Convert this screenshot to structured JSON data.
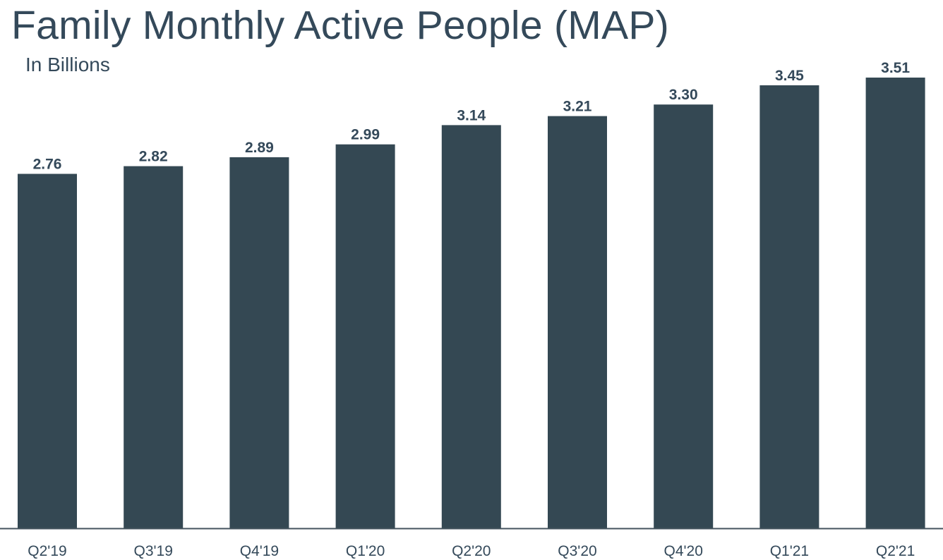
{
  "header": {
    "title": "Family Monthly Active People (MAP)",
    "subtitle": "In Billions"
  },
  "colors": {
    "bar": "#344853",
    "text": "#34495a",
    "axis": "#44535e"
  },
  "chart_data": {
    "type": "bar",
    "title": "Family Monthly Active People (MAP)",
    "subtitle": "In Billions",
    "xlabel": "",
    "ylabel": "",
    "ylim": [
      0,
      3.51
    ],
    "grid": false,
    "categories": [
      "Q2'19",
      "Q3'19",
      "Q4'19",
      "Q1'20",
      "Q2'20",
      "Q3'20",
      "Q4'20",
      "Q1'21",
      "Q2'21"
    ],
    "values": [
      2.76,
      2.82,
      2.89,
      2.99,
      3.14,
      3.21,
      3.3,
      3.45,
      3.51
    ],
    "data_labels": [
      "2.76",
      "2.82",
      "2.89",
      "2.99",
      "3.14",
      "3.21",
      "3.30",
      "3.45",
      "3.51"
    ]
  }
}
